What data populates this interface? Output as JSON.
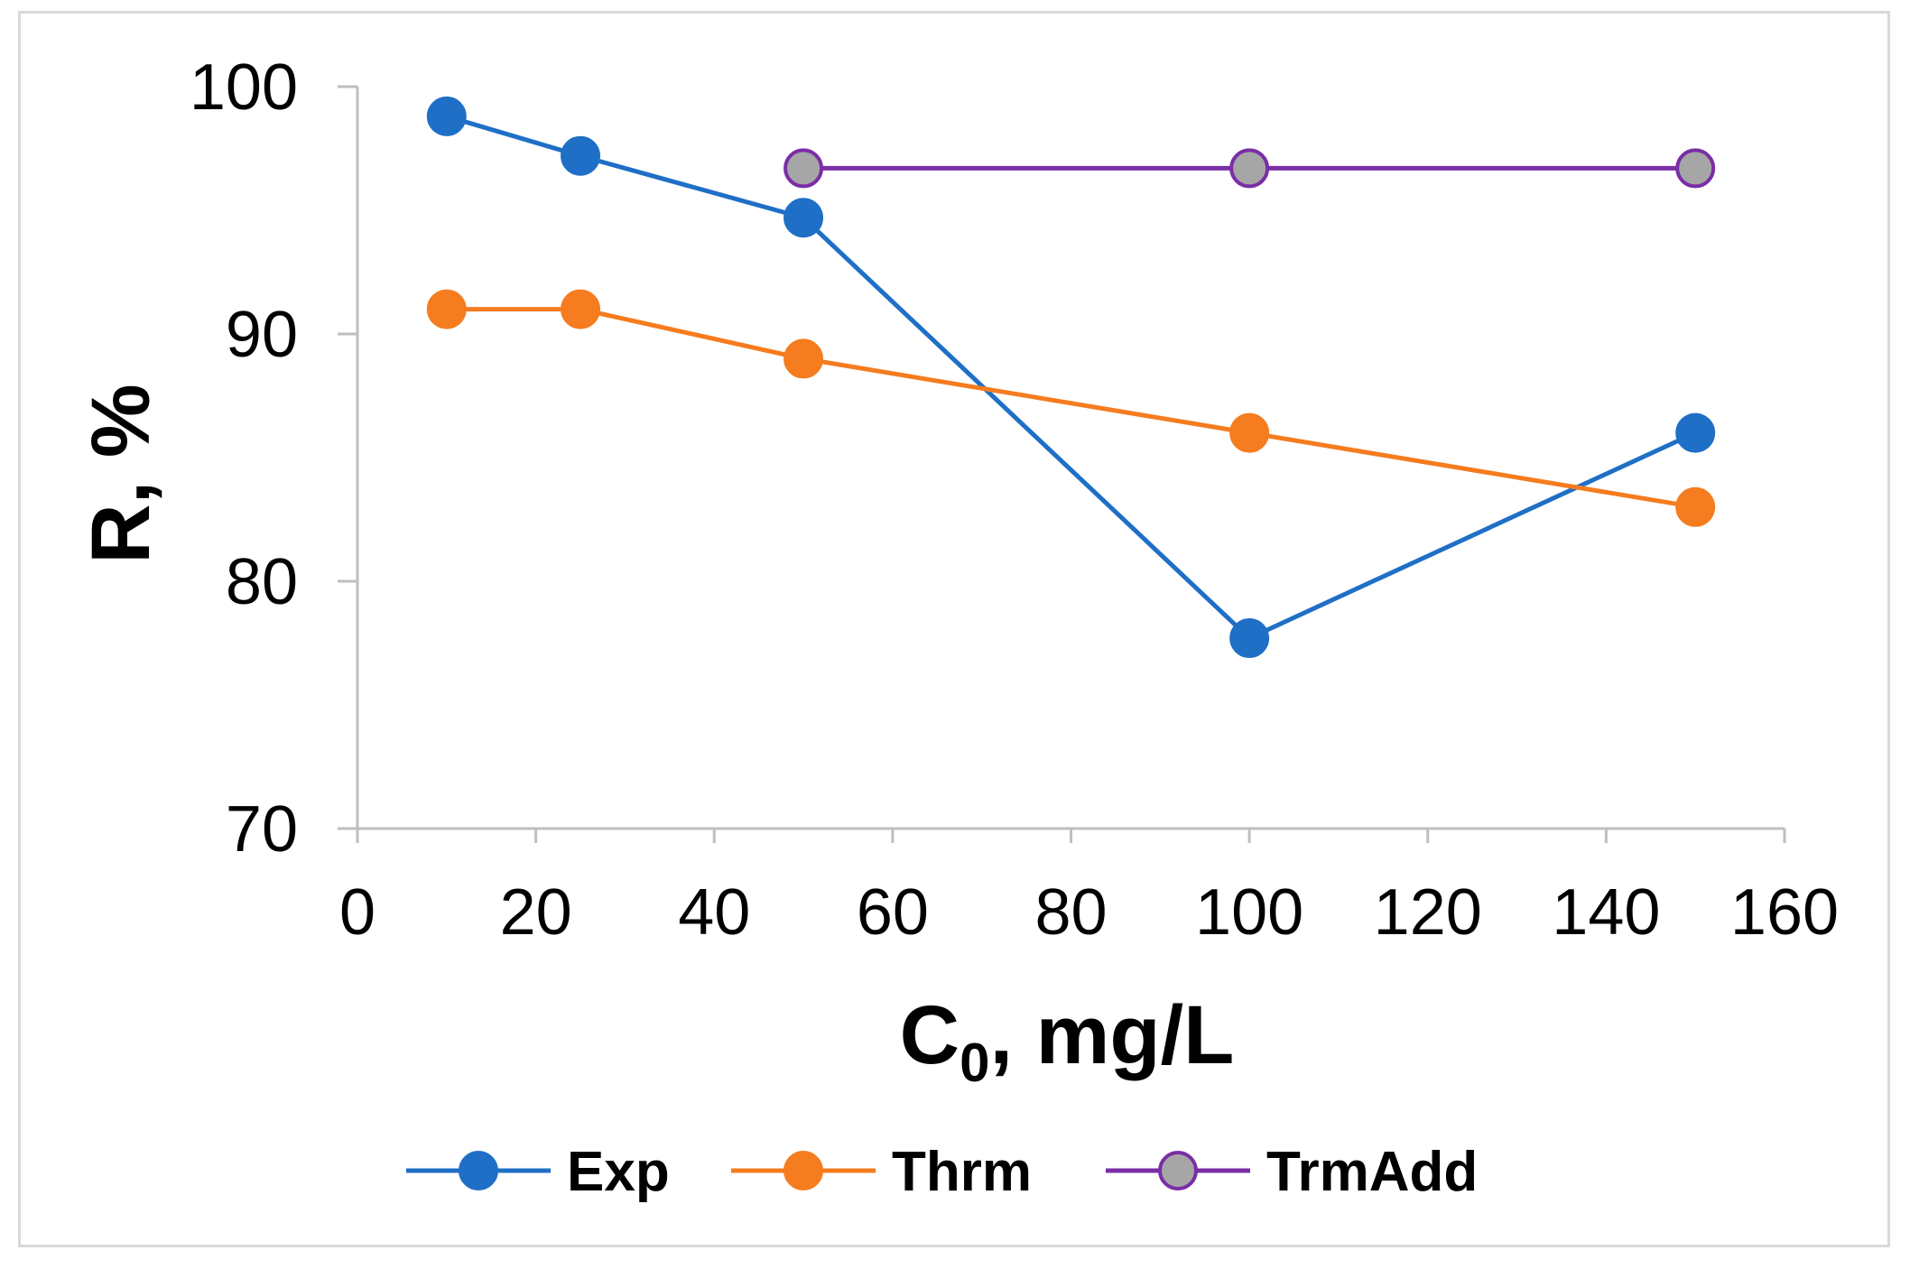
{
  "chart_data": {
    "type": "line",
    "title": "",
    "xlabel": "C",
    "xlabel_subscript": "0",
    "xlabel_suffix": ", mg/L",
    "ylabel": "R, %",
    "xlim": [
      0,
      160
    ],
    "ylim": [
      70,
      100
    ],
    "xticks": [
      0,
      20,
      40,
      60,
      80,
      100,
      120,
      140,
      160
    ],
    "yticks": [
      70,
      80,
      90,
      100
    ],
    "grid": false,
    "legend_position": "bottom",
    "series": [
      {
        "name": "Exp",
        "color": "#1f6fc6",
        "marker_fill": "#1f6fc6",
        "marker_stroke": "#1f6fc6",
        "x": [
          10,
          25,
          50,
          100,
          150
        ],
        "y": [
          98.8,
          97.2,
          94.7,
          77.7,
          86.0
        ]
      },
      {
        "name": "Thrm",
        "color": "#f57c1f",
        "marker_fill": "#f57c1f",
        "marker_stroke": "#f57c1f",
        "x": [
          10,
          25,
          50,
          100,
          150
        ],
        "y": [
          91.0,
          91.0,
          89.0,
          86.0,
          83.0
        ]
      },
      {
        "name": "TrmAdd",
        "color": "#7a2ea6",
        "marker_fill": "#a6a6a6",
        "marker_stroke": "#7a2ea6",
        "x": [
          50,
          100,
          150
        ],
        "y": [
          96.7,
          96.7,
          96.7
        ]
      }
    ]
  }
}
